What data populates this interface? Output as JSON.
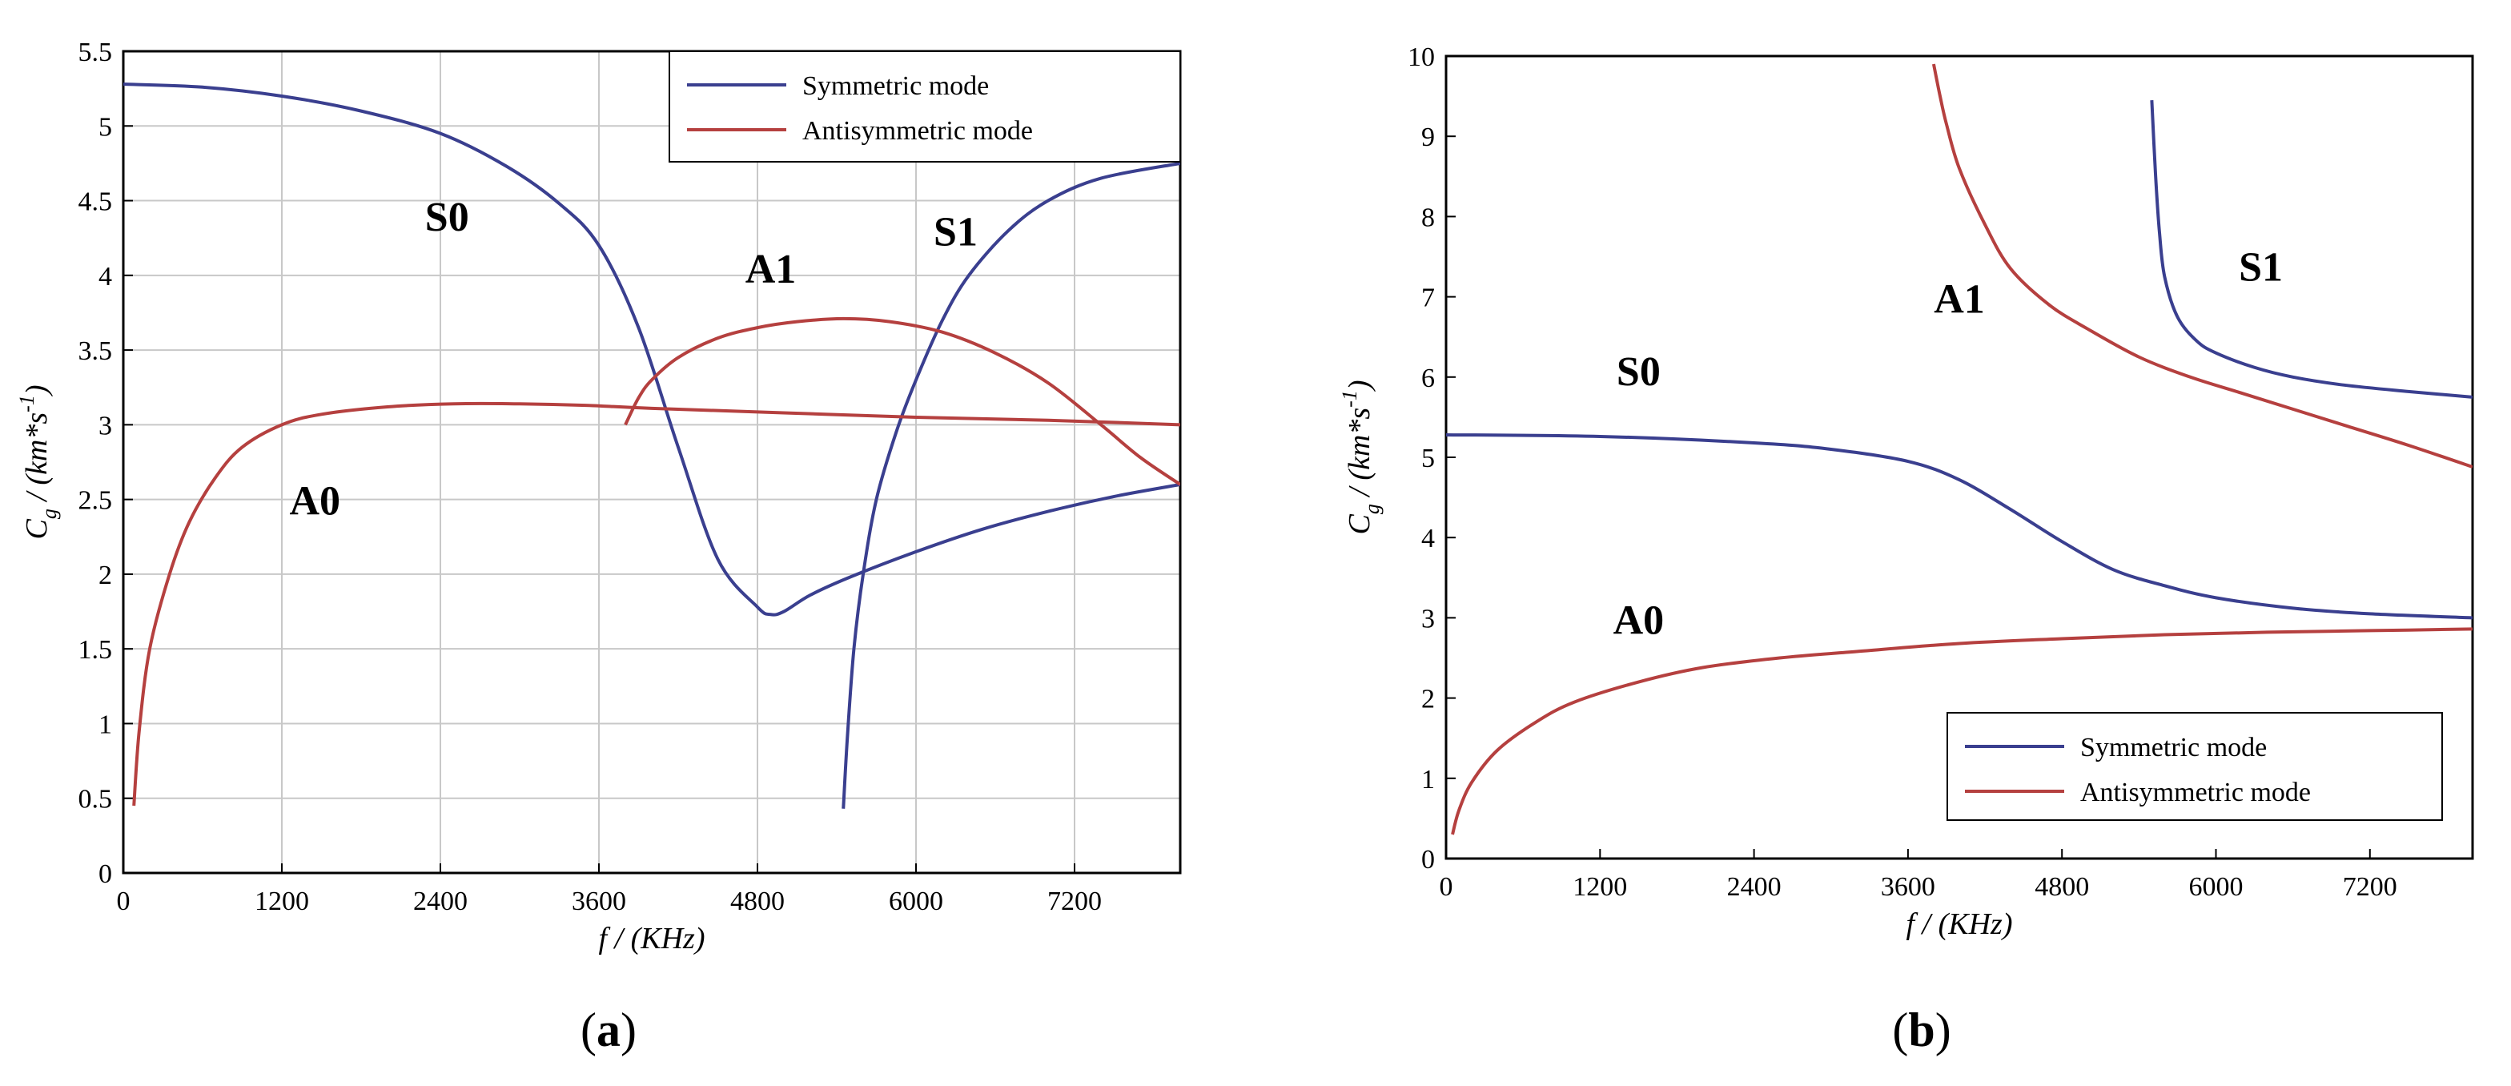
{
  "colors": {
    "symmetric": "#3a3f8f",
    "antisymmetric": "#b5403f",
    "grid": "#c8c8c8",
    "frame": "#000000"
  },
  "chart_data": [
    {
      "type": "line",
      "caption": "a",
      "xlabel": "f / (KHz)",
      "ylabel": "C_g / (km*s^-1)",
      "xlim": [
        0,
        8000
      ],
      "ylim": [
        0,
        5.5
      ],
      "xticks": [
        0,
        1200,
        2400,
        3600,
        4800,
        6000,
        7200
      ],
      "yticks": [
        0,
        0.5,
        1,
        1.5,
        2,
        2.5,
        3,
        3.5,
        4,
        4.5,
        5,
        5.5
      ],
      "grid": true,
      "legend": {
        "position": "top-right",
        "entries": [
          "Symmetric mode",
          "Antisymmetric mode"
        ]
      },
      "series": [
        {
          "name": "S0",
          "kind": "symmetric",
          "x": [
            0,
            600,
            1200,
            1800,
            2400,
            2900,
            3300,
            3600,
            3900,
            4200,
            4500,
            4800,
            4900,
            5000,
            5200,
            5500,
            6000,
            6500,
            7000,
            7500,
            8000
          ],
          "y": [
            5.28,
            5.26,
            5.2,
            5.1,
            4.95,
            4.73,
            4.48,
            4.2,
            3.65,
            2.85,
            2.1,
            1.78,
            1.73,
            1.75,
            1.86,
            1.98,
            2.15,
            2.3,
            2.42,
            2.52,
            2.6
          ]
        },
        {
          "name": "S1",
          "kind": "symmetric",
          "x": [
            5450,
            5480,
            5530,
            5600,
            5700,
            5850,
            6000,
            6200,
            6400,
            6700,
            7000,
            7400,
            8000
          ],
          "y": [
            0.43,
            0.9,
            1.5,
            2.0,
            2.5,
            2.95,
            3.3,
            3.7,
            4.0,
            4.3,
            4.5,
            4.65,
            4.75
          ]
        },
        {
          "name": "A0",
          "kind": "antisymmetric",
          "x": [
            80,
            120,
            200,
            350,
            500,
            700,
            900,
            1200,
            1500,
            2000,
            2500,
            3000,
            3500,
            4000,
            5000,
            6000,
            7000,
            8000
          ],
          "y": [
            0.45,
            0.95,
            1.5,
            2.0,
            2.35,
            2.65,
            2.85,
            3.0,
            3.07,
            3.12,
            3.14,
            3.14,
            3.13,
            3.11,
            3.08,
            3.05,
            3.03,
            3.0
          ]
        },
        {
          "name": "A1",
          "kind": "antisymmetric",
          "x": [
            3800,
            3900,
            4000,
            4200,
            4500,
            4800,
            5100,
            5450,
            5800,
            6200,
            6600,
            7000,
            7400,
            7700,
            8000
          ],
          "y": [
            3.0,
            3.18,
            3.3,
            3.45,
            3.58,
            3.65,
            3.69,
            3.71,
            3.69,
            3.62,
            3.48,
            3.28,
            3.0,
            2.78,
            2.6
          ]
        }
      ],
      "mode_labels": [
        {
          "text": "S0",
          "x": 2450,
          "y": 4.3
        },
        {
          "text": "A1",
          "x": 4900,
          "y": 3.95
        },
        {
          "text": "S1",
          "x": 6300,
          "y": 4.2
        },
        {
          "text": "A0",
          "x": 1450,
          "y": 2.4
        }
      ]
    },
    {
      "type": "line",
      "caption": "b",
      "xlabel": "f / (KHz)",
      "ylabel": "C_g / (km*s^-1)",
      "xlim": [
        0,
        8000
      ],
      "ylim": [
        0,
        10
      ],
      "xticks": [
        0,
        1200,
        2400,
        3600,
        4800,
        6000,
        7200
      ],
      "yticks": [
        0,
        1,
        2,
        3,
        4,
        5,
        6,
        7,
        8,
        9,
        10
      ],
      "grid": false,
      "legend": {
        "position": "bottom-right",
        "entries": [
          "Symmetric mode",
          "Antisymmetric mode"
        ]
      },
      "series": [
        {
          "name": "S0",
          "kind": "symmetric",
          "x": [
            0,
            1200,
            2400,
            3000,
            3600,
            4000,
            4400,
            4800,
            5200,
            5600,
            6000,
            6600,
            7200,
            8000
          ],
          "y": [
            5.28,
            5.26,
            5.18,
            5.1,
            4.95,
            4.72,
            4.35,
            3.95,
            3.6,
            3.4,
            3.25,
            3.12,
            3.05,
            3.0
          ]
        },
        {
          "name": "S1",
          "kind": "symmetric",
          "x": [
            5500,
            5530,
            5560,
            5600,
            5700,
            5850,
            6000,
            6300,
            6600,
            7000,
            7500,
            8000
          ],
          "y": [
            9.45,
            8.5,
            7.8,
            7.25,
            6.75,
            6.45,
            6.3,
            6.12,
            6.0,
            5.9,
            5.82,
            5.75
          ]
        },
        {
          "name": "A0",
          "kind": "antisymmetric",
          "x": [
            50,
            100,
            200,
            400,
            700,
            1000,
            1500,
            2000,
            2600,
            3200,
            4000,
            4800,
            5600,
            6400,
            7200,
            8000
          ],
          "y": [
            0.3,
            0.6,
            0.95,
            1.35,
            1.7,
            1.95,
            2.2,
            2.38,
            2.5,
            2.58,
            2.68,
            2.74,
            2.79,
            2.82,
            2.84,
            2.86
          ]
        },
        {
          "name": "A1",
          "kind": "antisymmetric",
          "x": [
            3800,
            3850,
            3900,
            4000,
            4200,
            4400,
            4700,
            5000,
            5400,
            5800,
            6200,
            6600,
            7000,
            7500,
            8000
          ],
          "y": [
            9.9,
            9.5,
            9.15,
            8.6,
            7.9,
            7.35,
            6.9,
            6.6,
            6.25,
            6.0,
            5.8,
            5.6,
            5.4,
            5.15,
            4.88
          ]
        }
      ],
      "mode_labels": [
        {
          "text": "S0",
          "x": 1500,
          "y": 5.9
        },
        {
          "text": "A1",
          "x": 4000,
          "y": 6.8
        },
        {
          "text": "S1",
          "x": 6350,
          "y": 7.2
        },
        {
          "text": "A0",
          "x": 1500,
          "y": 2.8
        }
      ]
    }
  ]
}
